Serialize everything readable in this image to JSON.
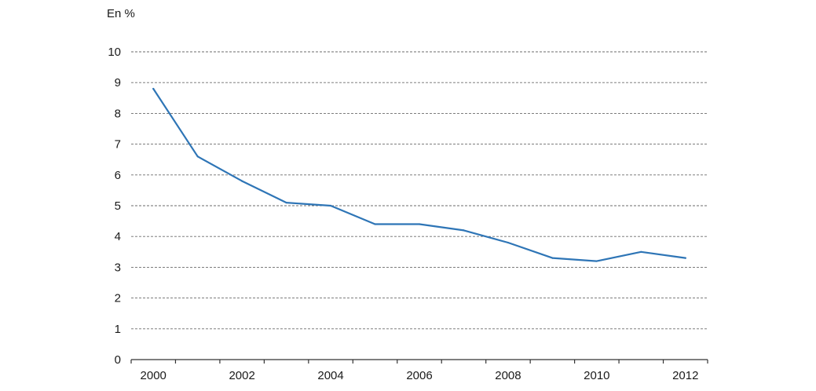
{
  "chart_data": {
    "type": "line",
    "ylabel": "En %",
    "xlabel": "",
    "x": [
      2000,
      2001,
      2002,
      2003,
      2004,
      2005,
      2006,
      2007,
      2008,
      2009,
      2010,
      2011,
      2012
    ],
    "xlim": [
      1999.5,
      2012.5
    ],
    "x_tick_labels": [
      "2000",
      "2002",
      "2004",
      "2006",
      "2008",
      "2010",
      "2012"
    ],
    "ylim": [
      0,
      10
    ],
    "y_tick_labels": [
      "0",
      "1",
      "2",
      "3",
      "4",
      "5",
      "6",
      "7",
      "8",
      "9",
      "10"
    ],
    "grid": "horizontal dashed",
    "legend": "none",
    "series": [
      {
        "values": [
          8.8,
          6.6,
          5.8,
          5.1,
          5.0,
          4.4,
          4.4,
          4.2,
          3.8,
          3.3,
          3.2,
          3.5,
          3.3
        ],
        "color": "#2e75b6"
      }
    ]
  }
}
